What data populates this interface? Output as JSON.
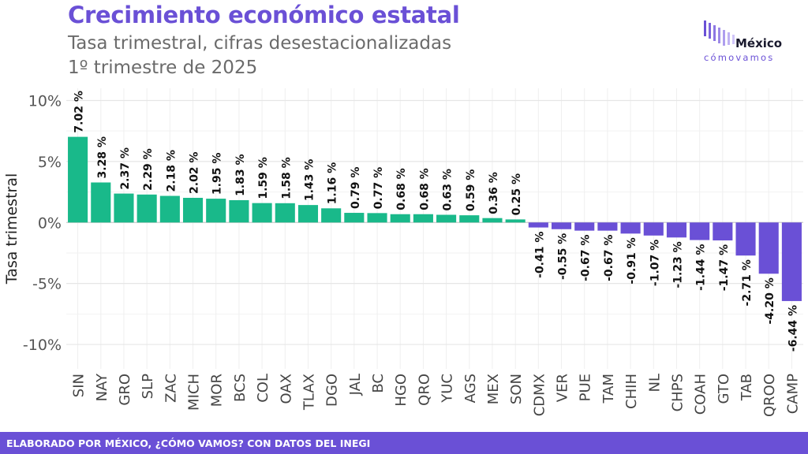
{
  "header": {
    "title": "Crecimiento económico estatal",
    "subtitle_line1": "Tasa trimestral, cifras desestacionalizadas",
    "subtitle_line2": "1º trimestre de 2025"
  },
  "logo": {
    "word": "México",
    "sub": "cómovamos"
  },
  "footer": {
    "text": "ELABORADO POR MÉXICO, ¿CÓMO VAMOS? CON DATOS DEL INEGI"
  },
  "colors": {
    "positive": "#19b98a",
    "negative": "#6a50d6",
    "title": "#6a50d6",
    "grid": "#e6e6e6"
  },
  "chart_data": {
    "type": "bar",
    "ylabel": "Tasa trimestral",
    "ylim": [
      -12,
      11
    ],
    "yticks": [
      10,
      5,
      0,
      -5,
      -10
    ],
    "ytick_labels": [
      "10%",
      "5%",
      "0%",
      "-5%",
      "-10%"
    ],
    "grid": true,
    "categories": [
      "SIN",
      "NAY",
      "GRO",
      "SLP",
      "ZAC",
      "MICH",
      "MOR",
      "BCS",
      "COL",
      "OAX",
      "TLAX",
      "DGO",
      "JAL",
      "BC",
      "HGO",
      "QRO",
      "YUC",
      "AGS",
      "MEX",
      "SON",
      "CDMX",
      "VER",
      "PUE",
      "TAM",
      "CHIH",
      "NL",
      "CHPS",
      "COAH",
      "GTO",
      "TAB",
      "QROO",
      "CAMP"
    ],
    "values": [
      7.02,
      3.28,
      2.37,
      2.29,
      2.18,
      2.02,
      1.95,
      1.83,
      1.59,
      1.58,
      1.43,
      1.16,
      0.79,
      0.77,
      0.68,
      0.68,
      0.63,
      0.59,
      0.36,
      0.25,
      -0.41,
      -0.55,
      -0.67,
      -0.67,
      -0.91,
      -1.07,
      -1.23,
      -1.44,
      -1.47,
      -2.71,
      -4.2,
      -6.44
    ],
    "value_labels": [
      "7.02 %",
      "3.28 %",
      "2.37 %",
      "2.29 %",
      "2.18 %",
      "2.02 %",
      "1.95 %",
      "1.83 %",
      "1.59 %",
      "1.58 %",
      "1.43 %",
      "1.16 %",
      "0.79 %",
      "0.77 %",
      "0.68 %",
      "0.68 %",
      "0.63 %",
      "0.59 %",
      "0.36 %",
      "0.25 %",
      "-0.41 %",
      "-0.55 %",
      "-0.67 %",
      "-0.67 %",
      "-0.91 %",
      "-1.07 %",
      "-1.23 %",
      "-1.44 %",
      "-1.47 %",
      "-2.71 %",
      "-4.20 %",
      "-6.44 %"
    ]
  }
}
